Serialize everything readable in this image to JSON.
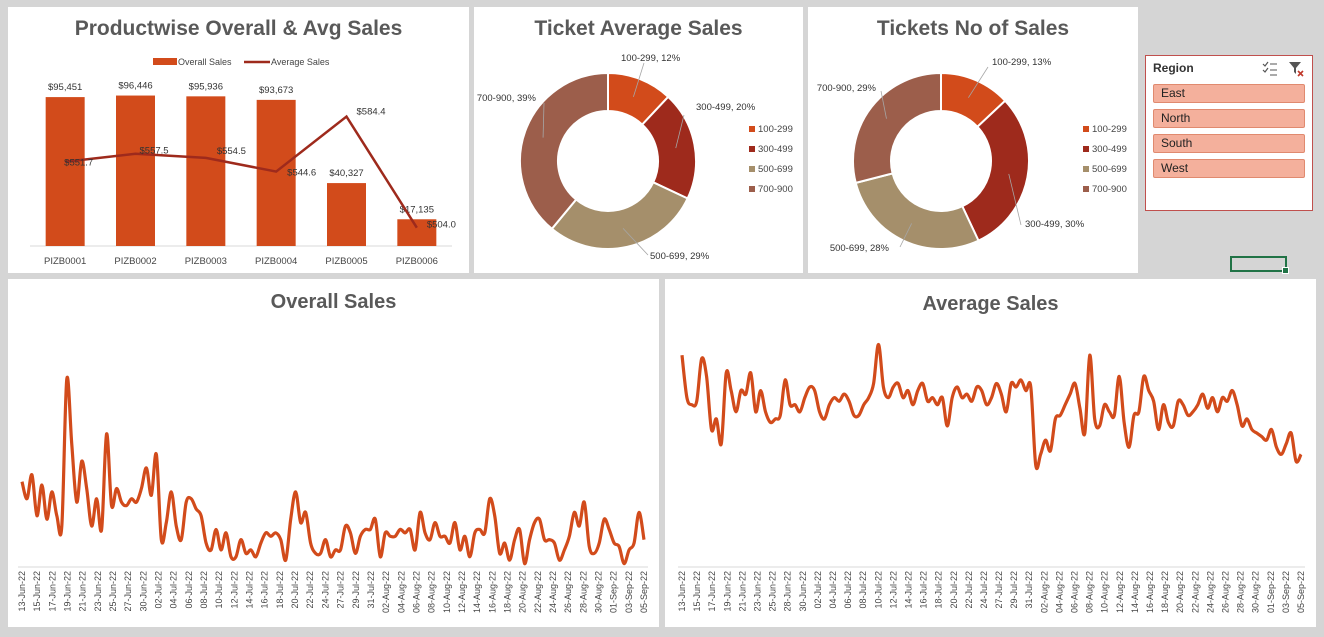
{
  "colors": {
    "bar": "#d24b1b",
    "avg_line": "#9e2a1c",
    "trend": "#d24b1b",
    "slicer_item": "#f4b09c",
    "selection": "#217346"
  },
  "titles": {
    "product_chart": "Productwise Overall & Avg Sales",
    "ticket_avg": "Ticket Average Sales",
    "ticket_count": "Tickets No of Sales",
    "overall": "Overall Sales",
    "average": "Average Sales"
  },
  "slicer": {
    "header": "Region",
    "items": [
      "East",
      "North",
      "South",
      "West"
    ],
    "icons": [
      "multi-select-icon",
      "clear-filter-icon"
    ]
  },
  "chart_data": [
    {
      "id": "product",
      "type": "bar",
      "title": "Productwise Overall & Avg Sales",
      "legend_position": "top",
      "categories": [
        "PIZB0001",
        "PIZB0002",
        "PIZB0003",
        "PIZB0004",
        "PIZB0005",
        "PIZB0006"
      ],
      "series": [
        {
          "name": "Overall Sales",
          "type": "bar",
          "values": [
            95451,
            96446,
            95936,
            93673,
            40327,
            17135
          ],
          "labels": [
            "$95,451",
            "$96,446",
            "$95,936",
            "$93,673",
            "$40,327",
            "$17,135"
          ]
        },
        {
          "name": "Average Sales",
          "type": "line",
          "values": [
            551.7,
            557.5,
            554.5,
            544.6,
            584.4,
            504.0
          ],
          "labels": [
            "$551.7",
            "$557.5",
            "$554.5",
            "$544.6",
            "$584.4",
            "$504.0"
          ]
        }
      ]
    },
    {
      "id": "ticket_avg",
      "type": "pie",
      "title": "Ticket Average Sales",
      "legend_position": "right",
      "labels": [
        "100-299",
        "300-499",
        "500-699",
        "700-900"
      ],
      "values": [
        12,
        20,
        29,
        39
      ],
      "data_labels": [
        "100-299, 12%",
        "300-499, 20%",
        "500-699, 29%",
        "700-900, 39%"
      ],
      "colors": [
        "#d24b1b",
        "#9e2a1c",
        "#a58f6b",
        "#9c5e4b"
      ]
    },
    {
      "id": "ticket_count",
      "type": "pie",
      "title": "Tickets No of Sales",
      "legend_position": "right",
      "labels": [
        "100-299",
        "300-499",
        "500-699",
        "700-900"
      ],
      "values": [
        13,
        30,
        28,
        29
      ],
      "data_labels": [
        "100-299, 13%",
        "300-499, 30%",
        "500-699, 28%",
        "700-900, 29%"
      ],
      "colors": [
        "#d24b1b",
        "#9e2a1c",
        "#a58f6b",
        "#9c5e4b"
      ]
    },
    {
      "id": "overall",
      "type": "line",
      "title": "Overall Sales",
      "x_start": "2022-06-13",
      "x_tick_labels": [
        "13-Jun-22",
        "15-Jun-22",
        "17-Jun-22",
        "19-Jun-22",
        "21-Jun-22",
        "23-Jun-22",
        "25-Jun-22",
        "27-Jun-22",
        "30-Jun-22",
        "02-Jul-22",
        "04-Jul-22",
        "06-Jul-22",
        "08-Jul-22",
        "10-Jul-22",
        "12-Jul-22",
        "14-Jul-22",
        "16-Jul-22",
        "18-Jul-22",
        "20-Jul-22",
        "22-Jul-22",
        "24-Jul-22",
        "27-Jul-22",
        "29-Jul-22",
        "31-Jul-22",
        "02-Aug-22",
        "04-Aug-22",
        "06-Aug-22",
        "08-Aug-22",
        "10-Aug-22",
        "12-Aug-22",
        "14-Aug-22",
        "16-Aug-22",
        "18-Aug-22",
        "20-Aug-22",
        "22-Aug-22",
        "24-Aug-22",
        "26-Aug-22",
        "28-Aug-22",
        "30-Aug-22",
        "01-Sep-22",
        "03-Sep-22",
        "05-Sep-22"
      ],
      "values": [
        4200,
        3700,
        4400,
        3200,
        4100,
        3100,
        3900,
        3200,
        2900,
        7200,
        5300,
        3600,
        4800,
        4000,
        2900,
        3700,
        2800,
        5600,
        3500,
        4000,
        3600,
        3500,
        3700,
        3600,
        4000,
        4600,
        3800,
        5000,
        2500,
        3000,
        3900,
        2900,
        2500,
        3600,
        3700,
        3400,
        3200,
        2400,
        2200,
        2800,
        2200,
        2700,
        2000,
        2000,
        2500,
        2100,
        2200,
        2000,
        2400,
        2700,
        2600,
        2700,
        2500,
        1900,
        3100,
        3900,
        3000,
        3300,
        2400,
        2100,
        2100,
        2500,
        2000,
        2200,
        2200,
        2900,
        2700,
        2100,
        2600,
        2800,
        2800,
        3100,
        2000,
        2700,
        2600,
        2600,
        2800,
        2700,
        2800,
        2200,
        3300,
        2700,
        2500,
        3000,
        2600,
        2600,
        2400,
        3000,
        2200,
        2600,
        2000,
        2700,
        2800,
        2700,
        3700,
        3200,
        2100,
        2400,
        1900,
        2500,
        2800,
        1800,
        2500,
        3000,
        3100,
        2500,
        2500,
        2400,
        1900,
        2200,
        2600,
        3300,
        2900,
        3600,
        2300,
        2100,
        2400,
        3100,
        2800,
        2400,
        2300,
        1800,
        2200,
        2400,
        3300,
        2500
      ]
    },
    {
      "id": "average",
      "type": "line",
      "title": "Average Sales",
      "x_start": "2022-06-13",
      "x_tick_labels": [
        "13-Jun-22",
        "15-Jun-22",
        "17-Jun-22",
        "19-Jun-22",
        "21-Jun-22",
        "23-Jun-22",
        "25-Jun-22",
        "28-Jun-22",
        "30-Jun-22",
        "02-Jul-22",
        "04-Jul-22",
        "06-Jul-22",
        "08-Jul-22",
        "10-Jul-22",
        "12-Jul-22",
        "14-Jul-22",
        "16-Jul-22",
        "18-Jul-22",
        "20-Jul-22",
        "22-Jul-22",
        "24-Jul-22",
        "27-Jul-22",
        "29-Jul-22",
        "31-Jul-22",
        "02-Aug-22",
        "04-Aug-22",
        "06-Aug-22",
        "08-Aug-22",
        "10-Aug-22",
        "12-Aug-22",
        "14-Aug-22",
        "16-Aug-22",
        "18-Aug-22",
        "20-Aug-22",
        "22-Aug-22",
        "24-Aug-22",
        "26-Aug-22",
        "28-Aug-22",
        "30-Aug-22",
        "01-Sep-22",
        "03-Sep-22",
        "05-Sep-22"
      ],
      "values": [
        566,
        554,
        552,
        553,
        565,
        560,
        545,
        548,
        541,
        561,
        556,
        550,
        556,
        555,
        561,
        550,
        556,
        550,
        547,
        548,
        549,
        559,
        552,
        552,
        550,
        554,
        557,
        556,
        550,
        548,
        552,
        554,
        553,
        555,
        553,
        549,
        549,
        552,
        554,
        558,
        569,
        557,
        554,
        557,
        558,
        554,
        556,
        552,
        556,
        558,
        553,
        554,
        552,
        554,
        546,
        554,
        557,
        554,
        555,
        553,
        557,
        556,
        552,
        554,
        558,
        555,
        550,
        558,
        557,
        559,
        556,
        557,
        535,
        538,
        542,
        539,
        548,
        549,
        552,
        555,
        558,
        551,
        544,
        566,
        548,
        546,
        552,
        550,
        549,
        560,
        547,
        540,
        549,
        550,
        560,
        556,
        553,
        545,
        552,
        547,
        546,
        553,
        552,
        549,
        550,
        552,
        555,
        551,
        554,
        550,
        554,
        553,
        556,
        552,
        546,
        548,
        545,
        544,
        543,
        542,
        545,
        540,
        538,
        541,
        544,
        536,
        538
      ]
    }
  ]
}
